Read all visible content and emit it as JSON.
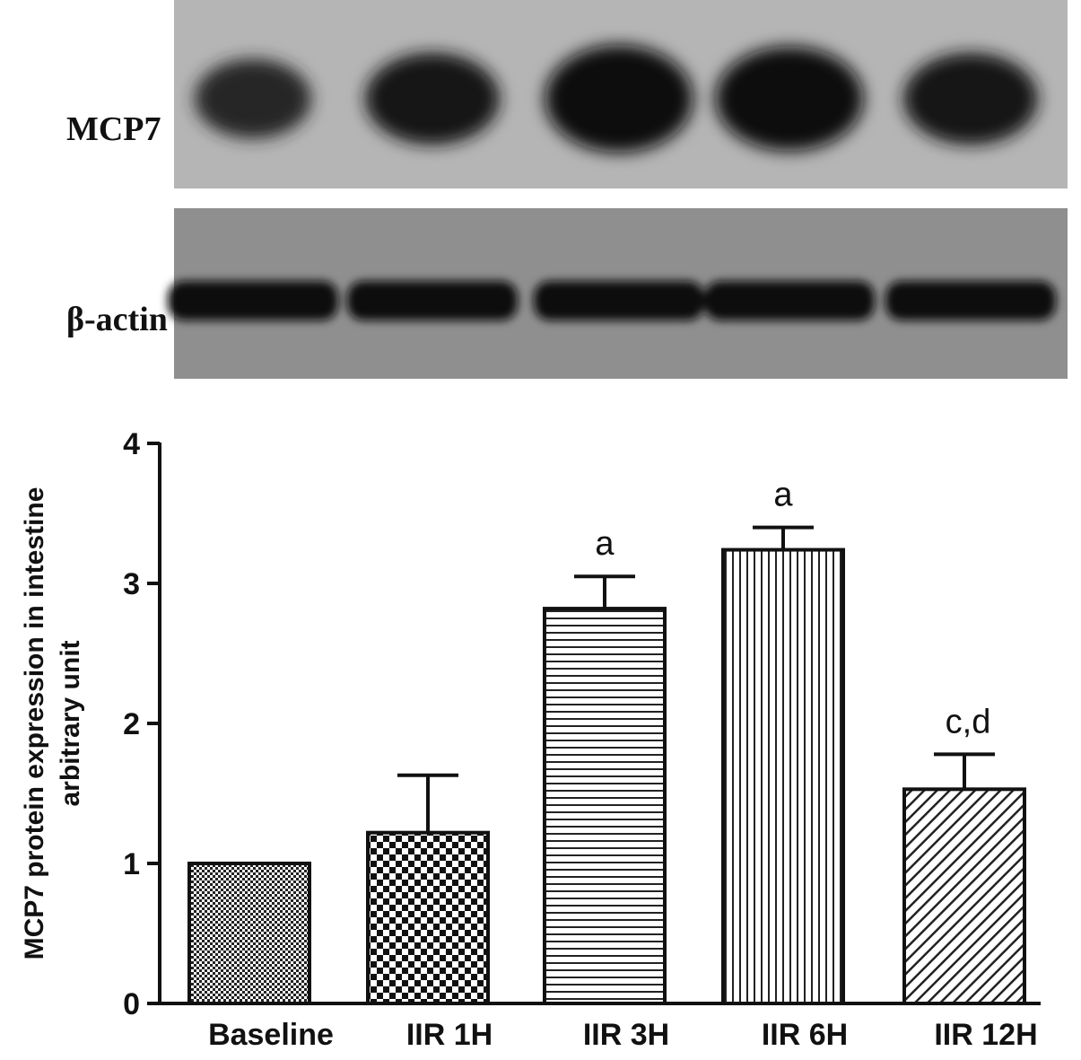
{
  "blot": {
    "rows": [
      {
        "label": "MCP7",
        "band_intensity": [
          0.55,
          0.75,
          1.0,
          0.95,
          0.75
        ]
      },
      {
        "label": "β-actin",
        "band_intensity": [
          0.95,
          0.9,
          0.88,
          0.9,
          0.88
        ]
      }
    ]
  },
  "chart_data": {
    "type": "bar",
    "categories": [
      "Baseline",
      "IIR 1H",
      "IIR 3H",
      "IIR 6H",
      "IIR 12H"
    ],
    "values": [
      1.0,
      1.22,
      2.82,
      3.24,
      1.53
    ],
    "errors": [
      0,
      0.41,
      0.23,
      0.16,
      0.25
    ],
    "annotations": [
      "",
      "",
      "a",
      "a",
      "c,d"
    ],
    "patterns": [
      "fine-check",
      "checker",
      "horizontal-lines",
      "vertical-lines",
      "diagonal-lines"
    ],
    "title": "",
    "xlabel": "",
    "ylabel": [
      "MCP7 protein expression in intestine",
      "arbitrary unit"
    ],
    "ylim": [
      0,
      4
    ],
    "yticks": [
      0,
      1,
      2,
      3,
      4
    ],
    "grid": false,
    "legend": "none"
  }
}
